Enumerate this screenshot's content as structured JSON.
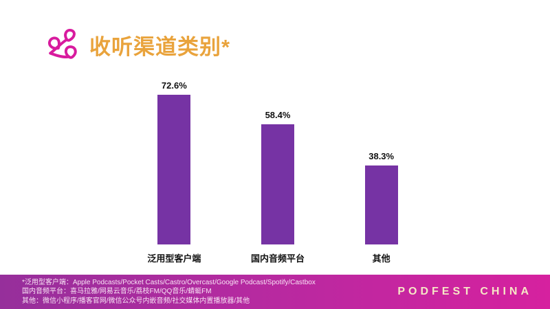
{
  "header": {
    "title": "收听渠道类别*",
    "title_color": "#E9A33C",
    "logo_color": "#D81B9E"
  },
  "chart_data": {
    "type": "bar",
    "categories": [
      "泛用型客户端",
      "国内音频平台",
      "其他"
    ],
    "values": [
      72.6,
      58.4,
      38.3
    ],
    "value_labels": [
      "72.6%",
      "58.4%",
      "38.3%"
    ],
    "title": "收听渠道类别*",
    "xlabel": "",
    "ylabel": "",
    "ylim": [
      0,
      80
    ],
    "grid": false,
    "legend": false,
    "bar_color": "#7633A4"
  },
  "footer": {
    "notes": [
      "*泛用型客户端：Apple Podcasts/Pocket Casts/Castro/Overcast/Google Podcast/Spotify/Castbox",
      "国内音频平台：喜马拉雅/网易云音乐/荔枝FM/QQ音乐/蜻蜓FM",
      "其他：微信小程序/播客官网/微信公众号内嵌音频/社交媒体内置播放器/其他"
    ],
    "brand": "PODFEST CHINA",
    "gradient_left": "#962F9B",
    "gradient_right": "#D6219F"
  }
}
